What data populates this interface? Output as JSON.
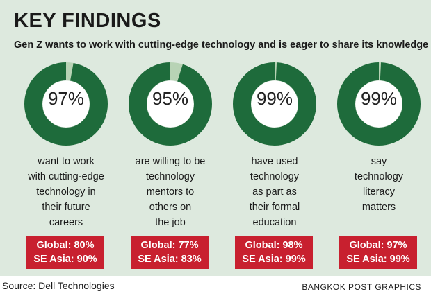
{
  "title": "KEY FINDINGS",
  "subtitle": "Gen Z wants to work with cutting-edge technology and is eager to share its knowledge",
  "source": "Source: Dell Technologies",
  "credit": "BANGKOK POST GRAPHICS",
  "colors": {
    "background": "#dde9de",
    "ring_filled": "#1e6b3b",
    "ring_remainder": "#b8d3b5",
    "badge": "#c8202f"
  },
  "chart_data": {
    "type": "pie",
    "title": "KEY FINDINGS",
    "subtitle": "Gen Z wants to work with cutting-edge technology and is eager to share its knowledge",
    "items": [
      {
        "value": 97,
        "label": "97%",
        "description": [
          "want to work",
          "with cutting-edge",
          "technology in",
          "their future",
          "careers"
        ],
        "global": "Global: 80%",
        "se_asia": "SE Asia: 90%"
      },
      {
        "value": 95,
        "label": "95%",
        "description": [
          "are willing to be",
          "technology",
          "mentors to",
          "others on",
          "the job"
        ],
        "global": "Global: 77%",
        "se_asia": "SE Asia: 83%"
      },
      {
        "value": 99,
        "label": "99%",
        "description": [
          "have used",
          "technology",
          "as part as",
          "their formal",
          "education"
        ],
        "global": "Global: 98%",
        "se_asia": "SE Asia: 99%"
      },
      {
        "value": 99,
        "label": "99%",
        "description": [
          "say",
          "technology",
          "literacy",
          "matters"
        ],
        "global": "Global: 97%",
        "se_asia": "SE Asia: 99%"
      }
    ]
  }
}
